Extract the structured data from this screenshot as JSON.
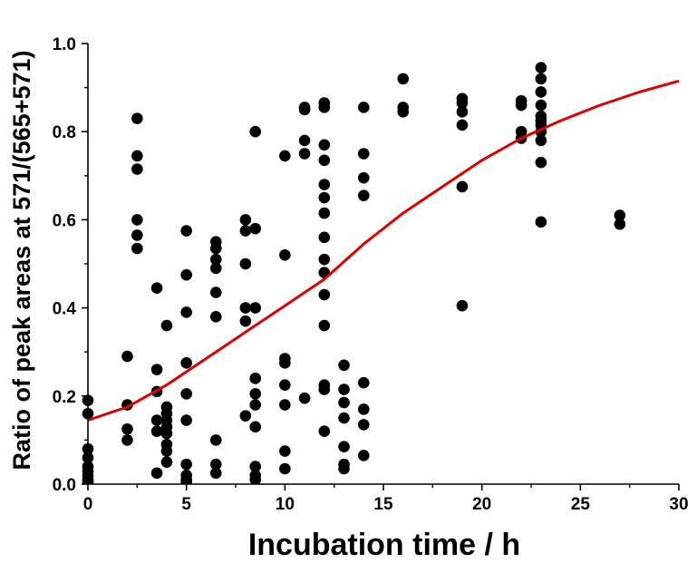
{
  "chart_data": {
    "type": "scatter",
    "title": "",
    "xlabel": "Incubation time / h",
    "ylabel": "Ratio of peak areas at 571/(565+571)",
    "xlim": [
      0,
      30
    ],
    "ylim": [
      0,
      1.0
    ],
    "x_ticks": [
      0,
      5,
      10,
      15,
      20,
      25,
      30
    ],
    "x_tick_labels": [
      "0",
      "5",
      "10",
      "15",
      "20",
      "25",
      "30"
    ],
    "y_ticks": [
      0,
      0.2,
      0.4,
      0.6,
      0.8,
      1.0
    ],
    "y_tick_labels": [
      "0.0",
      "0.2",
      "0.4",
      "0.6",
      "0.8",
      "1.0"
    ],
    "grid": false,
    "legend": "none",
    "series": [
      {
        "type": "scatter",
        "color": "#000000",
        "points": [
          [
            0,
            0.19
          ],
          [
            0,
            0.16
          ],
          [
            0,
            0.08
          ],
          [
            0,
            0.06
          ],
          [
            0,
            0.04
          ],
          [
            0,
            0.03
          ],
          [
            0,
            0.02
          ],
          [
            0,
            0.01
          ],
          [
            0,
            0.005
          ],
          [
            2,
            0.29
          ],
          [
            2,
            0.18
          ],
          [
            2,
            0.125
          ],
          [
            2,
            0.1
          ],
          [
            2.5,
            0.83
          ],
          [
            2.5,
            0.745
          ],
          [
            2.5,
            0.715
          ],
          [
            2.5,
            0.6
          ],
          [
            2.5,
            0.565
          ],
          [
            2.5,
            0.535
          ],
          [
            3.5,
            0.445
          ],
          [
            3.5,
            0.26
          ],
          [
            3.5,
            0.21
          ],
          [
            3.5,
            0.145
          ],
          [
            3.5,
            0.12
          ],
          [
            3.5,
            0.025
          ],
          [
            4,
            0.36
          ],
          [
            4,
            0.175
          ],
          [
            4,
            0.16
          ],
          [
            4,
            0.145
          ],
          [
            4,
            0.13
          ],
          [
            4,
            0.115
          ],
          [
            4,
            0.09
          ],
          [
            4,
            0.075
          ],
          [
            4,
            0.05
          ],
          [
            5,
            0.575
          ],
          [
            5,
            0.475
          ],
          [
            5,
            0.39
          ],
          [
            5,
            0.275
          ],
          [
            5,
            0.205
          ],
          [
            5,
            0.145
          ],
          [
            5,
            0.045
          ],
          [
            5,
            0.02
          ],
          [
            5,
            0.01
          ],
          [
            5,
            0.005
          ],
          [
            6.5,
            0.55
          ],
          [
            6.5,
            0.535
          ],
          [
            6.5,
            0.51
          ],
          [
            6.5,
            0.49
          ],
          [
            6.5,
            0.435
          ],
          [
            6.5,
            0.38
          ],
          [
            6.5,
            0.1
          ],
          [
            6.5,
            0.045
          ],
          [
            6.5,
            0.025
          ],
          [
            8,
            0.6
          ],
          [
            8,
            0.575
          ],
          [
            8,
            0.5
          ],
          [
            8,
            0.4
          ],
          [
            8,
            0.37
          ],
          [
            8,
            0.155
          ],
          [
            8.5,
            0.8
          ],
          [
            8.5,
            0.58
          ],
          [
            8.5,
            0.4
          ],
          [
            8.5,
            0.24
          ],
          [
            8.5,
            0.205
          ],
          [
            8.5,
            0.18
          ],
          [
            8.5,
            0.13
          ],
          [
            8.5,
            0.04
          ],
          [
            8.5,
            0.02
          ],
          [
            8.5,
            0.01
          ],
          [
            10,
            0.745
          ],
          [
            10,
            0.52
          ],
          [
            10,
            0.285
          ],
          [
            10,
            0.275
          ],
          [
            10,
            0.225
          ],
          [
            10,
            0.18
          ],
          [
            10,
            0.075
          ],
          [
            10,
            0.035
          ],
          [
            11,
            0.855
          ],
          [
            11,
            0.85
          ],
          [
            11,
            0.78
          ],
          [
            11,
            0.75
          ],
          [
            11,
            0.195
          ],
          [
            12,
            0.865
          ],
          [
            12,
            0.855
          ],
          [
            12,
            0.77
          ],
          [
            12,
            0.735
          ],
          [
            12,
            0.68
          ],
          [
            12,
            0.65
          ],
          [
            12,
            0.615
          ],
          [
            12,
            0.56
          ],
          [
            12,
            0.51
          ],
          [
            12,
            0.48
          ],
          [
            12,
            0.43
          ],
          [
            12,
            0.36
          ],
          [
            12,
            0.225
          ],
          [
            12,
            0.215
          ],
          [
            12,
            0.12
          ],
          [
            13,
            0.27
          ],
          [
            13,
            0.215
          ],
          [
            13,
            0.185
          ],
          [
            13,
            0.15
          ],
          [
            13,
            0.085
          ],
          [
            13,
            0.045
          ],
          [
            13,
            0.035
          ],
          [
            14,
            0.855
          ],
          [
            14,
            0.75
          ],
          [
            14,
            0.695
          ],
          [
            14,
            0.655
          ],
          [
            14,
            0.23
          ],
          [
            14,
            0.17
          ],
          [
            14,
            0.135
          ],
          [
            14,
            0.065
          ],
          [
            16,
            0.92
          ],
          [
            16,
            0.855
          ],
          [
            16,
            0.845
          ],
          [
            19,
            0.875
          ],
          [
            19,
            0.865
          ],
          [
            19,
            0.845
          ],
          [
            19,
            0.815
          ],
          [
            19,
            0.675
          ],
          [
            19,
            0.405
          ],
          [
            22,
            0.87
          ],
          [
            22,
            0.86
          ],
          [
            22,
            0.8
          ],
          [
            22,
            0.785
          ],
          [
            23,
            0.945
          ],
          [
            23,
            0.92
          ],
          [
            23,
            0.89
          ],
          [
            23,
            0.86
          ],
          [
            23,
            0.835
          ],
          [
            23,
            0.825
          ],
          [
            23,
            0.815
          ],
          [
            23,
            0.8
          ],
          [
            23,
            0.78
          ],
          [
            23,
            0.73
          ],
          [
            23,
            0.595
          ],
          [
            27,
            0.61
          ],
          [
            27,
            0.59
          ]
        ]
      },
      {
        "type": "line",
        "color": "#e00000",
        "points": [
          [
            0,
            0.145
          ],
          [
            2,
            0.175
          ],
          [
            4,
            0.225
          ],
          [
            6,
            0.285
          ],
          [
            8,
            0.345
          ],
          [
            10,
            0.405
          ],
          [
            12,
            0.465
          ],
          [
            14,
            0.545
          ],
          [
            16,
            0.615
          ],
          [
            18,
            0.675
          ],
          [
            20,
            0.735
          ],
          [
            22,
            0.785
          ],
          [
            24,
            0.825
          ],
          [
            26,
            0.86
          ],
          [
            28,
            0.89
          ],
          [
            30,
            0.915
          ]
        ]
      }
    ]
  }
}
